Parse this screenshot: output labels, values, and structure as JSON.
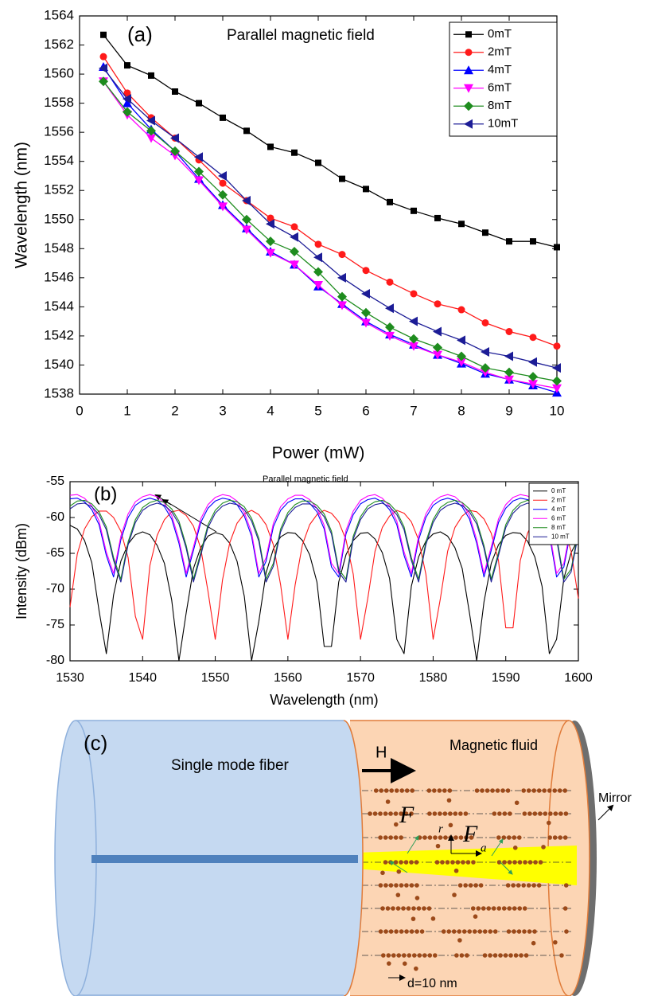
{
  "chart_data": [
    {
      "type": "line",
      "panel_label": "(a)",
      "title": "Parallel magnetic field",
      "x_label": "Power (mW)",
      "y_label": "Wavelength (nm)",
      "x": [
        0.5,
        1,
        1.5,
        2,
        2.5,
        3,
        3.5,
        4,
        4.5,
        5,
        5.5,
        6,
        6.5,
        7,
        7.5,
        8,
        8.5,
        9,
        9.5,
        10
      ],
      "xlim": [
        0,
        10
      ],
      "xticks": [
        0,
        1,
        2,
        3,
        4,
        5,
        6,
        7,
        8,
        9,
        10
      ],
      "ylim": [
        1538,
        1564
      ],
      "yticks": [
        1538,
        1540,
        1542,
        1544,
        1546,
        1548,
        1550,
        1552,
        1554,
        1556,
        1558,
        1560,
        1562,
        1564
      ],
      "markers": true,
      "legend": "upper right",
      "series": [
        {
          "name": "0mT",
          "color": "#000000",
          "marker": "square",
          "values": [
            1562.7,
            1560.6,
            1559.9,
            1558.8,
            1558.0,
            1557.0,
            1556.1,
            1555.0,
            1554.6,
            1553.9,
            1552.8,
            1552.1,
            1551.2,
            1550.6,
            1550.1,
            1549.7,
            1549.1,
            1548.5,
            1548.5,
            1548.1
          ]
        },
        {
          "name": "2mT",
          "color": "#ff1a1a",
          "marker": "circle",
          "values": [
            1561.2,
            1558.7,
            1557.0,
            1555.6,
            1554.1,
            1552.5,
            1551.3,
            1550.1,
            1549.5,
            1548.3,
            1547.6,
            1546.5,
            1545.7,
            1544.9,
            1544.2,
            1543.8,
            1542.9,
            1542.3,
            1541.9,
            1541.3
          ]
        },
        {
          "name": "4mT",
          "color": "#0000ff",
          "marker": "triangle-up",
          "values": [
            1560.5,
            1558.0,
            1556.2,
            1554.7,
            1552.8,
            1551.0,
            1549.4,
            1547.8,
            1546.9,
            1545.4,
            1544.2,
            1543.0,
            1542.1,
            1541.4,
            1540.7,
            1540.1,
            1539.4,
            1539.0,
            1538.6,
            1538.1
          ]
        },
        {
          "name": "6mT",
          "color": "#ff00ff",
          "marker": "triangle-down",
          "values": [
            1559.5,
            1557.2,
            1555.6,
            1554.4,
            1552.7,
            1550.9,
            1549.3,
            1547.7,
            1546.9,
            1545.5,
            1544.1,
            1542.9,
            1542.0,
            1541.3,
            1540.7,
            1540.2,
            1539.5,
            1539.0,
            1538.7,
            1538.4
          ]
        },
        {
          "name": "8mT",
          "color": "#1e8c1e",
          "marker": "diamond",
          "values": [
            1559.5,
            1557.4,
            1556.1,
            1554.7,
            1553.3,
            1551.7,
            1550.0,
            1548.5,
            1547.8,
            1546.4,
            1544.7,
            1543.6,
            1542.6,
            1541.8,
            1541.2,
            1540.6,
            1539.8,
            1539.5,
            1539.2,
            1538.9
          ]
        },
        {
          "name": "10mT",
          "color": "#1c1c96",
          "marker": "triangle-left",
          "values": [
            1560.4,
            1558.3,
            1556.8,
            1555.6,
            1554.3,
            1553.0,
            1551.3,
            1549.7,
            1548.8,
            1547.4,
            1546.0,
            1544.9,
            1543.9,
            1543.0,
            1542.3,
            1541.7,
            1540.9,
            1540.6,
            1540.2,
            1539.8
          ]
        }
      ]
    },
    {
      "type": "line",
      "panel_label": "(b)",
      "title": "Parallel magnetic field",
      "x_label": "Wavelength (nm)",
      "y_label": "Intensity (dBm)",
      "x": [
        1530,
        1531,
        1532,
        1533,
        1534,
        1535,
        1536,
        1537,
        1538,
        1539,
        1540,
        1541,
        1542,
        1543,
        1544,
        1545,
        1546,
        1547,
        1548,
        1549,
        1550,
        1551,
        1552,
        1553,
        1554,
        1555,
        1556,
        1557,
        1558,
        1559,
        1560,
        1561,
        1562,
        1563,
        1564,
        1565,
        1566,
        1567,
        1568,
        1569,
        1570,
        1571,
        1572,
        1573,
        1574,
        1575,
        1576,
        1577,
        1578,
        1579,
        1580,
        1581,
        1582,
        1583,
        1584,
        1585,
        1586,
        1587,
        1588,
        1589,
        1590,
        1591,
        1592,
        1593,
        1594,
        1595,
        1596,
        1597,
        1598,
        1599,
        1600
      ],
      "xlim": [
        1530,
        1600
      ],
      "xticks": [
        1530,
        1540,
        1550,
        1560,
        1570,
        1580,
        1590,
        1600
      ],
      "ylim": [
        -80,
        -55
      ],
      "yticks": [
        -80,
        -75,
        -70,
        -65,
        -60,
        -55
      ],
      "markers": false,
      "legend": "upper right",
      "series": [
        {
          "name": "0 mT",
          "color": "#000000",
          "values": [
            -61.1,
            -61.6,
            -63.2,
            -66.3,
            -73,
            -79,
            -70.8,
            -66.1,
            -63.7,
            -62.4,
            -62,
            -62.4,
            -63.9,
            -66.4,
            -71.5,
            -80,
            -73.3,
            -67.1,
            -64.2,
            -62.6,
            -62.1,
            -62.4,
            -63.6,
            -66.1,
            -71,
            -80,
            -74.5,
            -67.7,
            -64.4,
            -62.7,
            -62.1,
            -62.2,
            -63.2,
            -65.2,
            -69,
            -78,
            -78,
            -69,
            -65.2,
            -63.2,
            -62.2,
            -62.1,
            -63,
            -64.9,
            -68.5,
            -77,
            -79,
            -69.6,
            -65.5,
            -63.3,
            -62.3,
            -62,
            -62.6,
            -64.2,
            -67.1,
            -73.3,
            -80,
            -71.8,
            -66.4,
            -63.8,
            -62.5,
            -62.1,
            -62.2,
            -63.3,
            -65.5,
            -69.6,
            -79,
            -77,
            -68.5,
            -64.9,
            -63
          ]
        },
        {
          "name": "2 mT",
          "color": "#ff1a1a",
          "values": [
            -72.5,
            -65.1,
            -61.6,
            -59.9,
            -59.1,
            -59.1,
            -60,
            -61.9,
            -65.6,
            -73.8,
            -77,
            -66.7,
            -62.5,
            -60.3,
            -59.2,
            -59,
            -59.7,
            -61.2,
            -64.3,
            -70.3,
            -77,
            -68.7,
            -63.5,
            -60.8,
            -59.5,
            -59,
            -59.6,
            -61,
            -63.8,
            -69.4,
            -77,
            -69.4,
            -63.8,
            -61,
            -59.6,
            -59,
            -59.4,
            -60.6,
            -63.1,
            -67.9,
            -77,
            -71.3,
            -64.7,
            -61.4,
            -59.8,
            -59,
            -59.4,
            -60.6,
            -63.1,
            -67.9,
            -77,
            -71.3,
            -64.7,
            -61.4,
            -59.8,
            -59,
            -59.2,
            -60.2,
            -62.2,
            -66,
            -75.4,
            -75.4,
            -66,
            -62.2,
            -60.2,
            -59.2,
            -59,
            -59.8,
            -61.4,
            -64.7,
            -71.3
          ]
        },
        {
          "name": "4 mT",
          "color": "#0000ff",
          "values": [
            -57.4,
            -57.3,
            -57.8,
            -58.9,
            -61.0,
            -65.3,
            -68.3,
            -63.1,
            -60.0,
            -58.3,
            -57.6,
            -57.3,
            -57.6,
            -58.5,
            -60.2,
            -63.6,
            -68.3,
            -64.6,
            -60.7,
            -58.7,
            -57.7,
            -57.3,
            -57.5,
            -58.2,
            -59.8,
            -62.6,
            -68.3,
            -66.1,
            -61.3,
            -59.0,
            -57.9,
            -57.4,
            -57.4,
            -58.0,
            -59.2,
            -61.6,
            -66.9,
            -68.3,
            -62.3,
            -59.6,
            -58.1,
            -57.5,
            -57.3,
            -57.8,
            -58.9,
            -61.0,
            -65.3,
            -68.3,
            -63.1,
            -60.0,
            -58.3,
            -57.6,
            -57.3,
            -57.6,
            -58.5,
            -60.2,
            -63.6,
            -68.3,
            -64.6,
            -60.7,
            -58.7,
            -57.7,
            -57.3,
            -57.5,
            -58.1,
            -59.6,
            -62.3,
            -68.3,
            -66.9,
            -61.6,
            -59.2
          ]
        },
        {
          "name": "6 mT",
          "color": "#ff00ff",
          "values": [
            -56.9,
            -56.8,
            -57.3,
            -58.4,
            -60.5,
            -64.8,
            -67.8,
            -62.6,
            -59.5,
            -57.8,
            -57.1,
            -56.8,
            -57.1,
            -58.0,
            -59.7,
            -63.1,
            -67.8,
            -64.1,
            -60.2,
            -58.2,
            -57.2,
            -56.8,
            -57.0,
            -57.7,
            -59.3,
            -62.1,
            -67.8,
            -65.6,
            -60.8,
            -58.5,
            -57.4,
            -56.9,
            -56.9,
            -57.5,
            -58.7,
            -61.1,
            -66.4,
            -67.8,
            -61.8,
            -59.1,
            -57.6,
            -57.0,
            -56.8,
            -57.3,
            -58.4,
            -60.5,
            -64.8,
            -67.8,
            -62.6,
            -59.5,
            -57.8,
            -57.1,
            -56.8,
            -57.1,
            -58.0,
            -59.7,
            -63.1,
            -67.8,
            -64.1,
            -60.2,
            -58.2,
            -57.2,
            -56.8,
            -57.0,
            -57.6,
            -59.1,
            -61.8,
            -67.8,
            -66.4,
            -61.1,
            -58.7
          ]
        },
        {
          "name": "8 mT",
          "color": "#1e8c1e",
          "values": [
            -58.4,
            -57.7,
            -57.6,
            -58.1,
            -59.2,
            -61.3,
            -65.6,
            -68.6,
            -63.4,
            -60.3,
            -58.6,
            -57.9,
            -57.6,
            -57.9,
            -58.8,
            -60.5,
            -63.9,
            -68.6,
            -64.9,
            -61.0,
            -59.0,
            -58.0,
            -57.6,
            -57.8,
            -58.5,
            -60.1,
            -62.9,
            -68.6,
            -66.4,
            -61.6,
            -59.3,
            -58.2,
            -57.7,
            -57.7,
            -58.3,
            -59.5,
            -61.9,
            -67.2,
            -68.6,
            -62.6,
            -59.9,
            -58.4,
            -57.8,
            -57.6,
            -58.1,
            -59.2,
            -61.3,
            -65.6,
            -68.6,
            -63.4,
            -60.3,
            -58.6,
            -57.9,
            -57.6,
            -57.9,
            -58.8,
            -60.5,
            -63.9,
            -68.6,
            -64.9,
            -61.0,
            -59.0,
            -58.0,
            -57.6,
            -57.8,
            -58.4,
            -59.9,
            -62.6,
            -68.6,
            -67.2,
            -61.9
          ]
        },
        {
          "name": "10 mT",
          "color": "#1c1c96",
          "values": [
            -58.8,
            -58.1,
            -58.0,
            -58.5,
            -59.6,
            -61.7,
            -66.0,
            -69.0,
            -63.8,
            -60.7,
            -59.0,
            -58.3,
            -58.0,
            -58.3,
            -59.2,
            -60.9,
            -64.3,
            -69.0,
            -65.3,
            -61.4,
            -59.4,
            -58.4,
            -58.0,
            -58.2,
            -58.9,
            -60.5,
            -63.3,
            -69.0,
            -66.8,
            -62.0,
            -59.7,
            -58.6,
            -58.1,
            -58.1,
            -58.7,
            -59.9,
            -62.3,
            -67.6,
            -69.0,
            -63.0,
            -60.3,
            -58.8,
            -58.2,
            -58.0,
            -58.5,
            -59.6,
            -61.7,
            -66.0,
            -69.0,
            -63.8,
            -60.7,
            -59.0,
            -58.3,
            -58.0,
            -58.3,
            -59.2,
            -60.9,
            -64.3,
            -69.0,
            -65.3,
            -61.4,
            -59.4,
            -58.4,
            -58.0,
            -58.2,
            -58.8,
            -60.3,
            -63.0,
            -69.0,
            -67.6,
            -62.3
          ]
        }
      ]
    }
  ],
  "diagram": {
    "label": "(c)",
    "fiber": "Single mode fiber",
    "fluid": "Magnetic fluid",
    "field": "H",
    "mirror": "Mirror",
    "force_r": "F",
    "force_r_sub": "r",
    "force_a": "F",
    "force_a_sub": "a",
    "scale": "d=10 nm"
  }
}
